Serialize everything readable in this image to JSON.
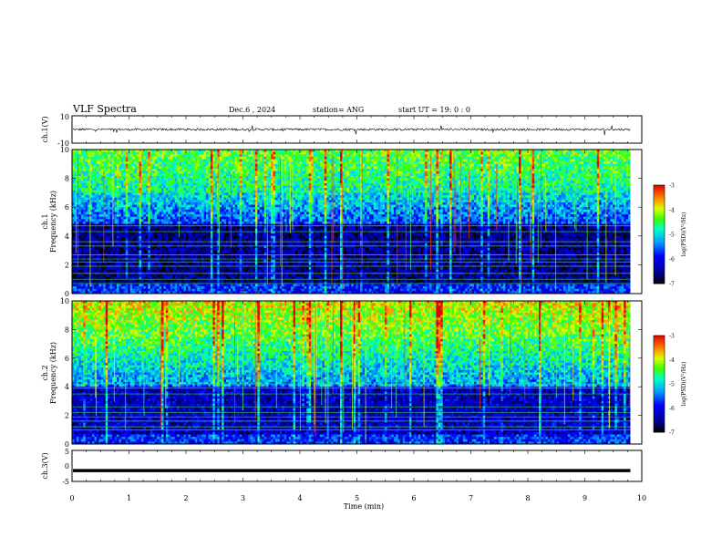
{
  "header": {
    "title": "VLF Spectra",
    "date": "Dec.6 , 2024",
    "station": "station= ANG",
    "start_time": "start UT = 19: 0 : 0"
  },
  "chart_data": [
    {
      "type": "line",
      "panel": "ch1-waveform",
      "ylabel": "ch.1(V)",
      "ylim": [
        -10,
        10
      ],
      "y_ticks": [
        "10",
        "-10"
      ],
      "description_values": {
        "baseline": 0,
        "noise_amplitude": 1
      }
    },
    {
      "type": "heatmap",
      "panel": "ch1-spectrogram",
      "ylabel_line1": "ch.1",
      "ylabel_line2": "Frequency (kHz)",
      "ylim": [
        0,
        10
      ],
      "y_ticks": [
        "0",
        "2",
        "4",
        "6",
        "8",
        "10"
      ],
      "colorbar": {
        "label": "log(PSD)(V²/Hz)",
        "range": [
          -7,
          -3
        ],
        "ticks": [
          "-3",
          "-4",
          "-5",
          "-6",
          "-7"
        ]
      }
    },
    {
      "type": "heatmap",
      "panel": "ch2-spectrogram",
      "ylabel_line1": "ch.2",
      "ylabel_line2": "Frequency (kHz)",
      "ylim": [
        0,
        10
      ],
      "y_ticks": [
        "0",
        "2",
        "4",
        "6",
        "8",
        "10"
      ],
      "colorbar": {
        "label": "log(PSD)(V²/Hz)",
        "range": [
          -7,
          -3
        ],
        "ticks": [
          "-3",
          "-4",
          "-5",
          "-6",
          "-7"
        ]
      }
    },
    {
      "type": "line",
      "panel": "ch3-waveform",
      "ylabel": "ch.3(V)",
      "ylim": [
        -5,
        5
      ],
      "y_ticks": [
        "5",
        "0",
        "-5"
      ],
      "values_constant": -1.5
    }
  ],
  "x_axis": {
    "label": "Time (min)",
    "range": [
      0,
      10
    ],
    "data_end": 9.8,
    "ticks": [
      "0",
      "1",
      "2",
      "3",
      "4",
      "5",
      "6",
      "7",
      "8",
      "9",
      "10"
    ]
  },
  "colors": {
    "high": "#ff0000",
    "mid": "#00ff00",
    "low": "#0000ff",
    "floor": "#000000"
  }
}
